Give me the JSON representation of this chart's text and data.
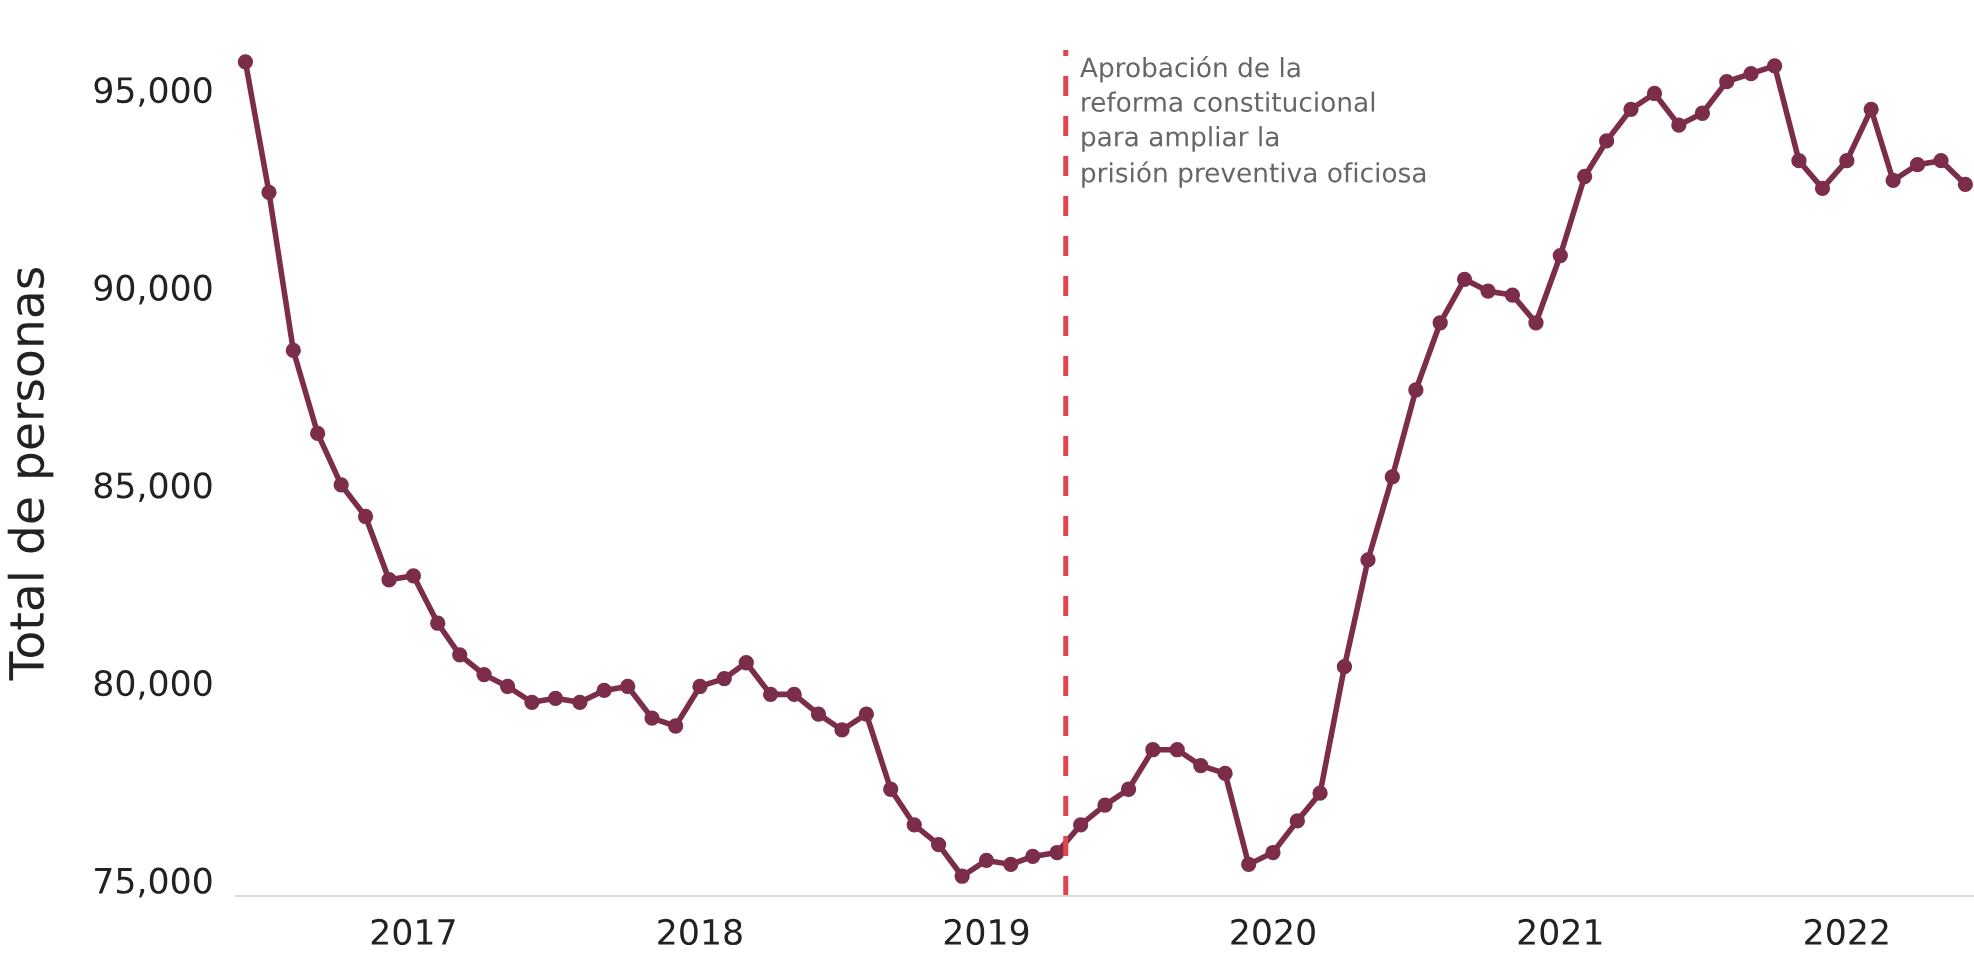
{
  "chart_data": {
    "type": "line",
    "ylabel": "Total de personas",
    "x": [
      "2016-06",
      "2016-07",
      "2016-08",
      "2016-09",
      "2016-10",
      "2016-11",
      "2016-12",
      "2017-01",
      "2017-02",
      "2017-03",
      "2017-04",
      "2017-05",
      "2017-06",
      "2017-07",
      "2017-08",
      "2017-09",
      "2017-10",
      "2017-11",
      "2017-12",
      "2018-01",
      "2018-02",
      "2018-03",
      "2018-04",
      "2018-05",
      "2018-06",
      "2018-07",
      "2018-08",
      "2018-09",
      "2018-10",
      "2018-11",
      "2018-12",
      "2019-01",
      "2019-02",
      "2019-03",
      "2019-04",
      "2019-05",
      "2019-06",
      "2019-07",
      "2019-08",
      "2019-09",
      "2019-10",
      "2019-11",
      "2019-12",
      "2020-01",
      "2020-02",
      "2020-03",
      "2020-04",
      "2020-05",
      "2020-06",
      "2020-07",
      "2020-08",
      "2020-09",
      "2020-10",
      "2020-11",
      "2020-12",
      "2021-01",
      "2021-02",
      "2021-03",
      "2021-04",
      "2021-05",
      "2021-06",
      "2021-07",
      "2021-08",
      "2021-09",
      "2021-10",
      "2021-11",
      "2021-12",
      "2022-01",
      "2022-02",
      "2022-03",
      "2022-04",
      "2022-05",
      "2022-06"
    ],
    "series": [
      {
        "color": "#7b2d4a",
        "values": [
          95700,
          92400,
          88400,
          86300,
          85000,
          84200,
          82600,
          82700,
          81500,
          80700,
          80200,
          79900,
          79500,
          79600,
          79500,
          79800,
          79900,
          79100,
          78900,
          79900,
          80100,
          80500,
          79700,
          79700,
          79200,
          78800,
          79200,
          77300,
          76400,
          75900,
          75100,
          75500,
          75400,
          75600,
          75700,
          76400,
          76900,
          77300,
          78300,
          78300,
          77900,
          77700,
          75400,
          75700,
          76500,
          77200,
          80400,
          83100,
          85200,
          87400,
          89100,
          90200,
          89900,
          89800,
          89100,
          90800,
          92800,
          93700,
          94500,
          94900,
          94100,
          94400,
          95200,
          95400,
          95600,
          93200,
          92500,
          93200,
          94500,
          92700,
          93100,
          93200,
          92600
        ]
      }
    ],
    "xticks": [
      "2017",
      "2018",
      "2019",
      "2020",
      "2021",
      "2022"
    ],
    "xlim": [
      "2016-05-20",
      "2022-06-12"
    ],
    "ylim": [
      74600,
      96000
    ],
    "yticks": [
      {
        "value": 75000,
        "label": "75,000"
      },
      {
        "value": 80000,
        "label": "80,000"
      },
      {
        "value": 85000,
        "label": "85,000"
      },
      {
        "value": 90000,
        "label": "90,000"
      },
      {
        "value": 95000,
        "label": "95,000"
      }
    ],
    "ref_lines": [
      {
        "axis": "x",
        "value": "2019-04-12",
        "label": "Aprobación de la\nreforma constitucional\npara ampliar la\nprisión preventiva oficiosa",
        "color": "#e0474c",
        "line_style": "dashed"
      }
    ],
    "marker": "circle",
    "line_style": "solid",
    "grid": false,
    "legend": false
  }
}
